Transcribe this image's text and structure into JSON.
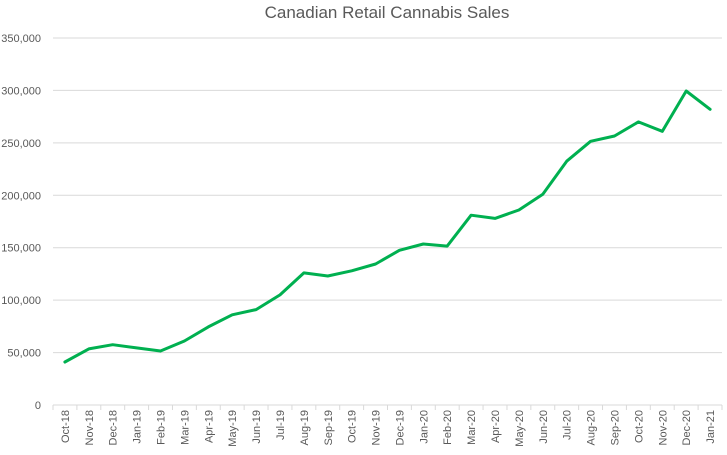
{
  "chart_data": {
    "type": "line",
    "title": "Canadian Retail Cannabis Sales",
    "xlabel": "",
    "ylabel": "",
    "ylim": [
      0,
      350000
    ],
    "ytick_step": 50000,
    "yticks": [
      "0",
      "50,000",
      "100,000",
      "150,000",
      "200,000",
      "250,000",
      "300,000",
      "350,000"
    ],
    "grid": true,
    "legend": "none",
    "categories": [
      "Oct-18",
      "Nov-18",
      "Dec-18",
      "Jan-19",
      "Feb-19",
      "Mar-19",
      "Apr-19",
      "May-19",
      "Jun-19",
      "Jul-19",
      "Aug-19",
      "Sep-19",
      "Oct-19",
      "Nov-19",
      "Dec-19",
      "Jan-20",
      "Feb-20",
      "Mar-20",
      "Apr-20",
      "May-20",
      "Jun-20",
      "Jul-20",
      "Aug-20",
      "Sep-20",
      "Oct-20",
      "Nov-20",
      "Dec-20",
      "Jan-21"
    ],
    "series": [
      {
        "name": "Canadian Retail Cannabis Sales",
        "color": "#00b050",
        "values": [
          41000,
          53500,
          57500,
          54500,
          51500,
          61000,
          74500,
          86000,
          91000,
          105000,
          126000,
          123000,
          128000,
          134500,
          147500,
          153500,
          151500,
          181000,
          178000,
          186000,
          201000,
          232500,
          251500,
          256500,
          270000,
          261000,
          299500,
          282000
        ]
      }
    ]
  }
}
